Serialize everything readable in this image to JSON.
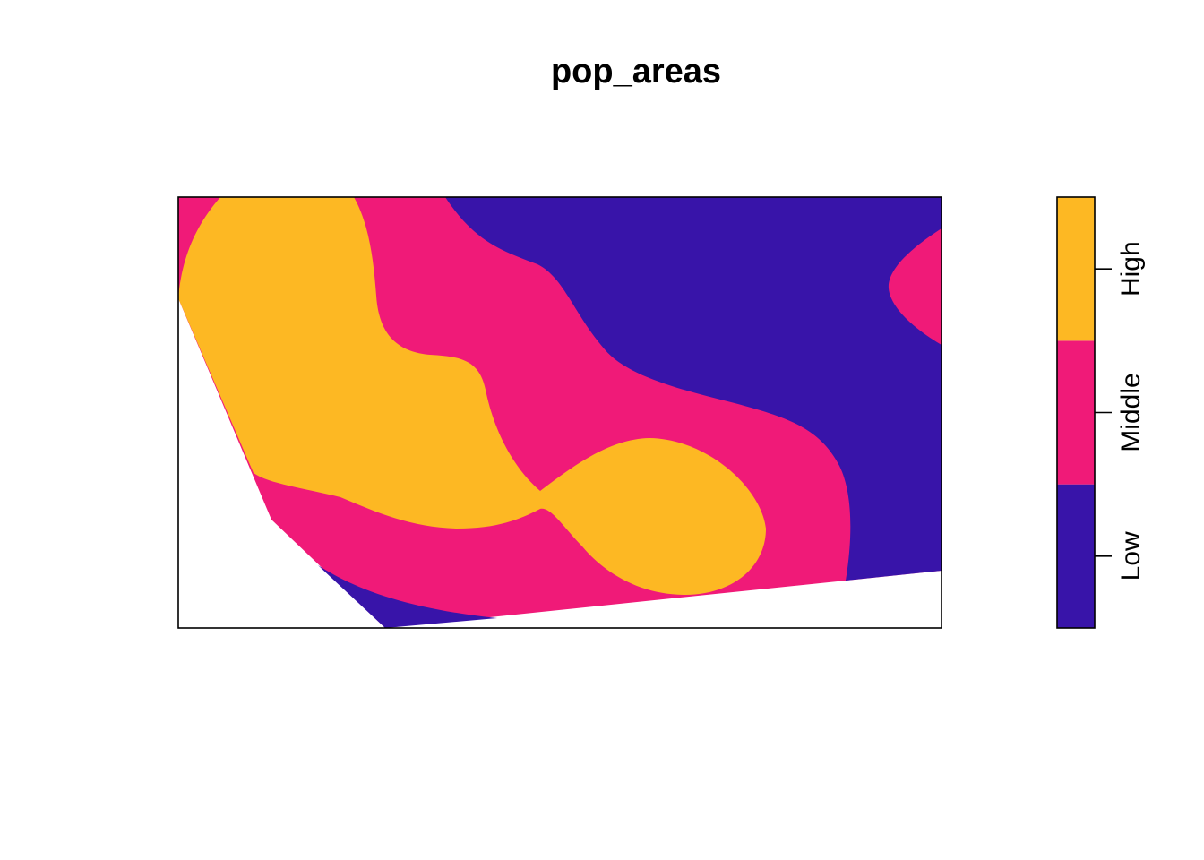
{
  "map": {
    "title": "pop_areas",
    "legend": {
      "classes": [
        {
          "label": "Low",
          "color": "#3814A9"
        },
        {
          "label": "Middle",
          "color": "#F01A78"
        },
        {
          "label": "High",
          "color": "#FDB823"
        }
      ]
    },
    "background_color": "#ffffff",
    "frame_color": "#000000"
  }
}
